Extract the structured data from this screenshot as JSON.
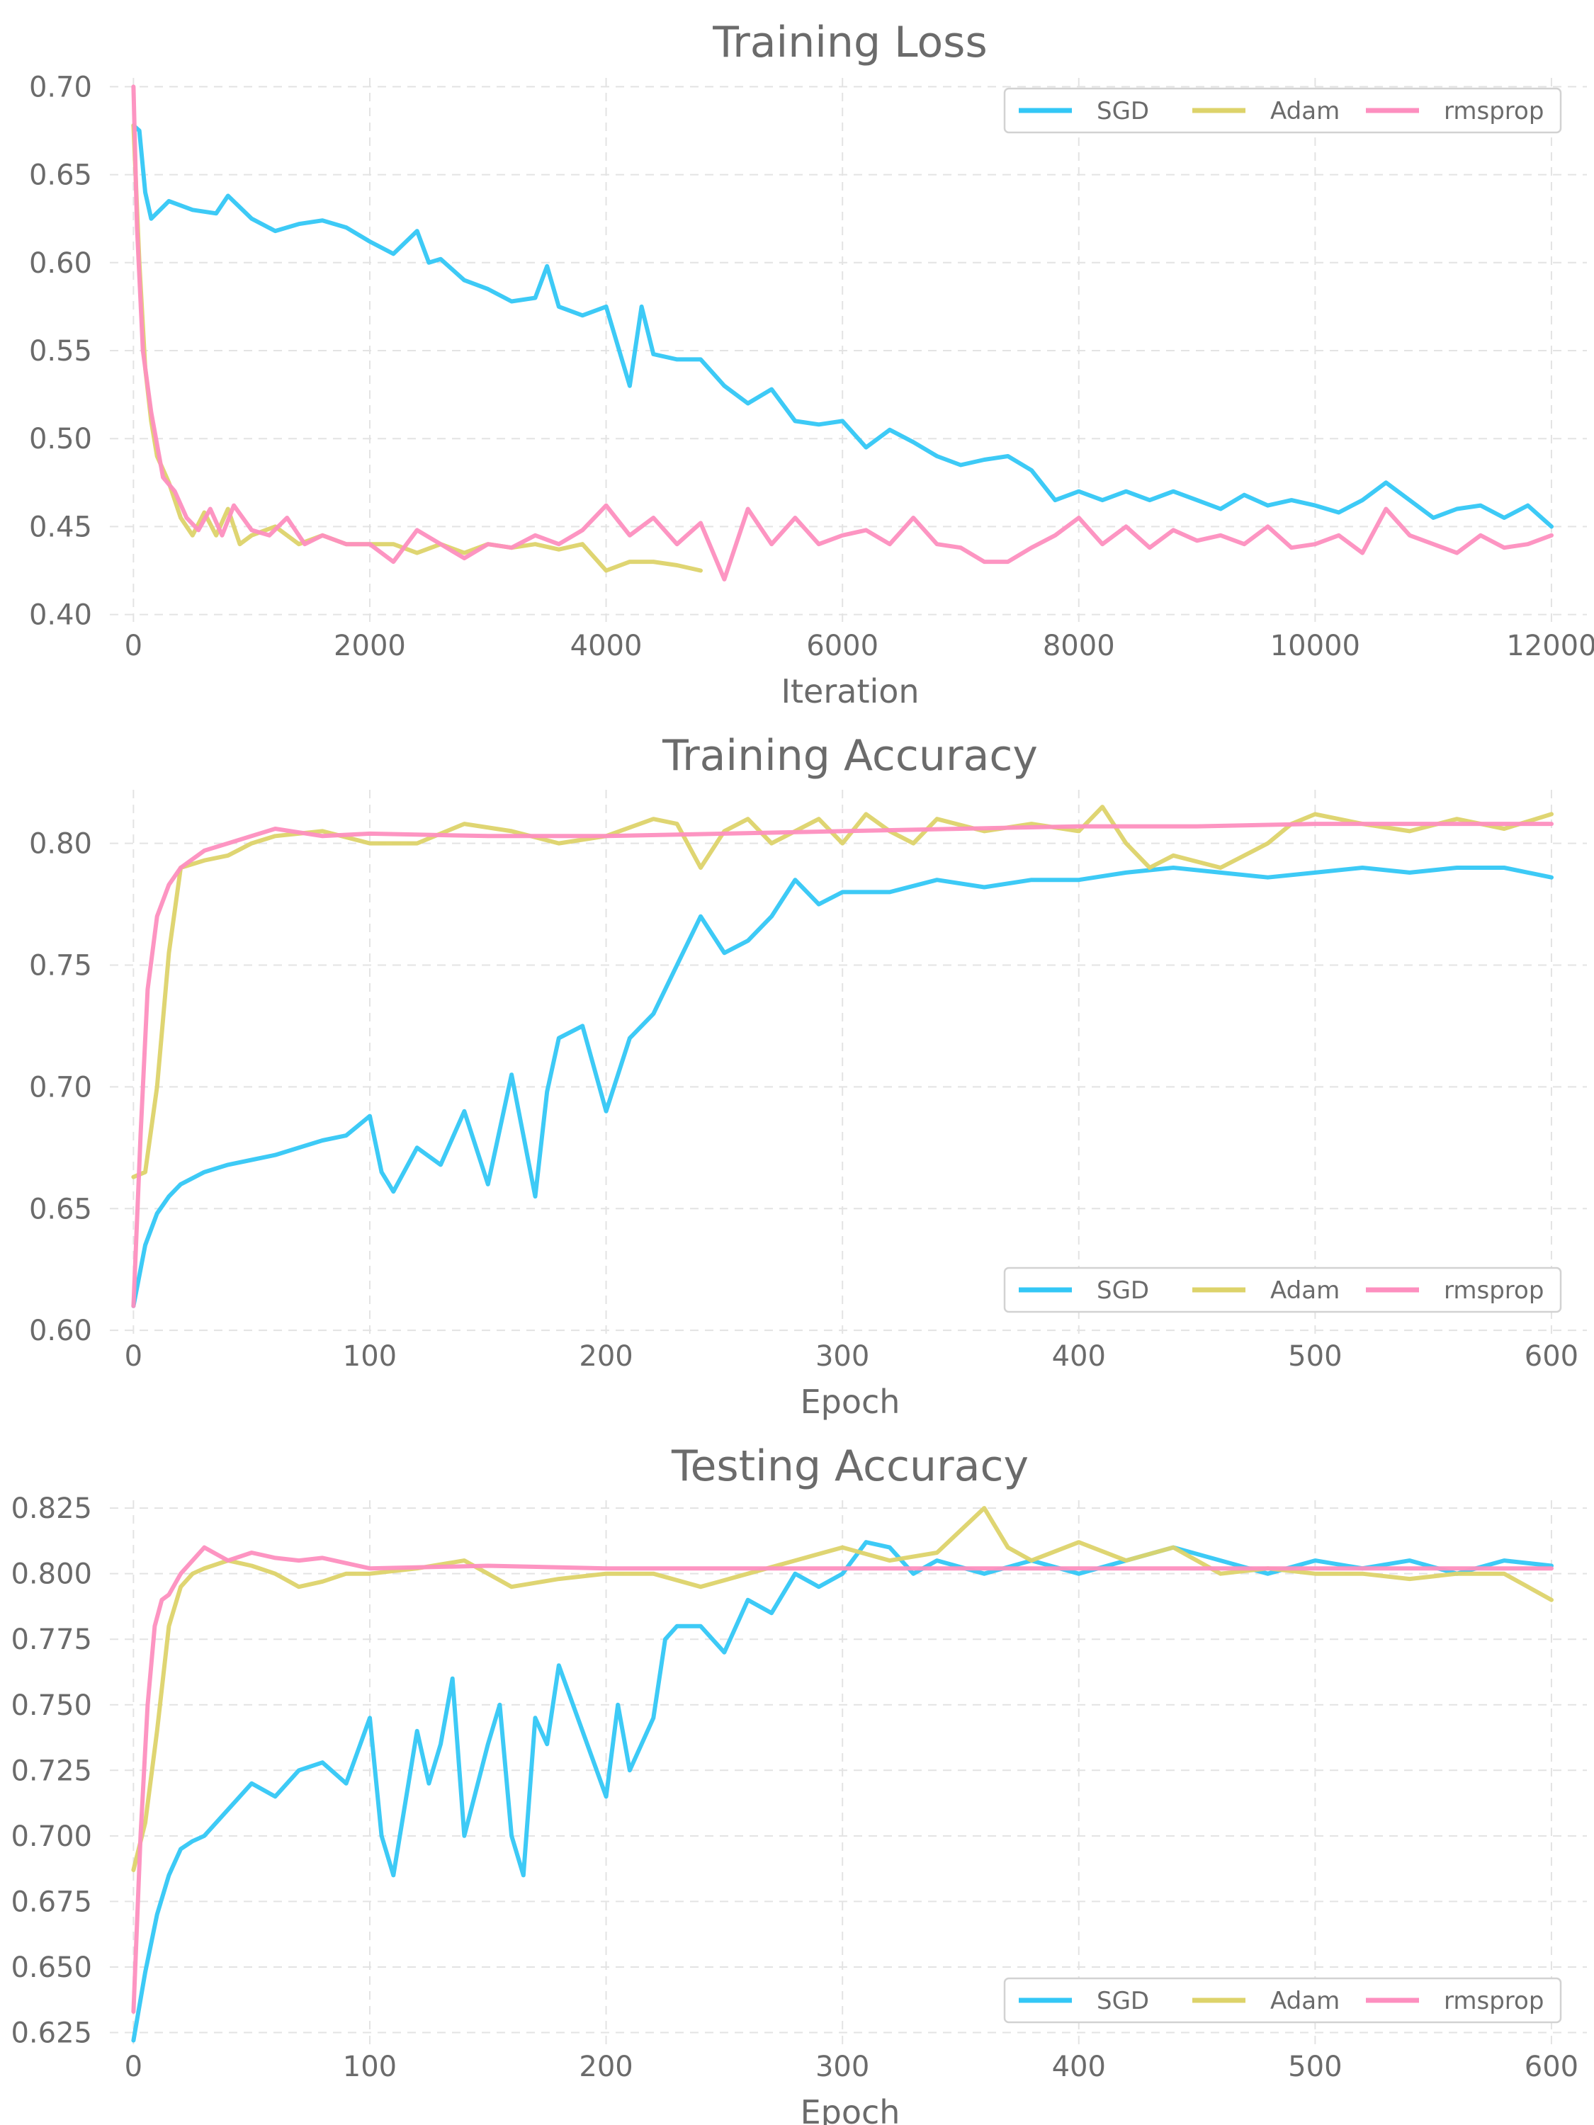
{
  "colors": {
    "SGD": "#33c7f6",
    "Adam": "#ddd36a",
    "rmsprop": "#fd8fbf",
    "text": "#6b6b6b",
    "grid": "#e3e3e3"
  },
  "chart_data": [
    {
      "type": "line",
      "title": "Training Loss",
      "xlabel": "Iteration",
      "ylabel": "",
      "xlim": [
        -200,
        12300
      ],
      "ylim": [
        0.395,
        0.705
      ],
      "xticks": [
        0,
        2000,
        4000,
        6000,
        8000,
        10000,
        12000
      ],
      "xtick_labels": [
        "0",
        "2000",
        "4000",
        "6000",
        "8000",
        "10000",
        "12000"
      ],
      "yticks": [
        0.4,
        0.45,
        0.5,
        0.55,
        0.6,
        0.65,
        0.7
      ],
      "ytick_labels": [
        "0.40",
        "0.45",
        "0.50",
        "0.55",
        "0.60",
        "0.65",
        "0.70"
      ],
      "grid": true,
      "legend": "top-right",
      "series": [
        {
          "name": "SGD",
          "x": [
            0,
            50,
            100,
            150,
            300,
            500,
            700,
            800,
            1000,
            1200,
            1400,
            1600,
            1800,
            2000,
            2200,
            2400,
            2500,
            2600,
            2800,
            3000,
            3200,
            3400,
            3500,
            3600,
            3800,
            4000,
            4200,
            4300,
            4400,
            4600,
            4800,
            5000,
            5200,
            5400,
            5600,
            5800,
            6000,
            6200,
            6400,
            6600,
            6800,
            7000,
            7200,
            7400,
            7600,
            7800,
            8000,
            8200,
            8400,
            8600,
            8800,
            9000,
            9200,
            9400,
            9600,
            9800,
            10000,
            10200,
            10400,
            10600,
            10800,
            11000,
            11200,
            11400,
            11600,
            11800,
            12000
          ],
          "y": [
            0.678,
            0.675,
            0.64,
            0.625,
            0.635,
            0.63,
            0.628,
            0.638,
            0.625,
            0.618,
            0.622,
            0.624,
            0.62,
            0.612,
            0.605,
            0.618,
            0.6,
            0.602,
            0.59,
            0.585,
            0.578,
            0.58,
            0.598,
            0.575,
            0.57,
            0.575,
            0.53,
            0.575,
            0.548,
            0.545,
            0.545,
            0.53,
            0.52,
            0.528,
            0.51,
            0.508,
            0.51,
            0.495,
            0.505,
            0.498,
            0.49,
            0.485,
            0.488,
            0.49,
            0.482,
            0.465,
            0.47,
            0.465,
            0.47,
            0.465,
            0.47,
            0.465,
            0.46,
            0.468,
            0.462,
            0.465,
            0.462,
            0.458,
            0.465,
            0.475,
            0.465,
            0.455,
            0.46,
            0.462,
            0.455,
            0.462,
            0.45
          ]
        },
        {
          "name": "Adam",
          "x": [
            0,
            50,
            100,
            150,
            200,
            300,
            400,
            500,
            600,
            700,
            800,
            900,
            1000,
            1200,
            1400,
            1600,
            1800,
            2000,
            2200,
            2400,
            2600,
            2800,
            3000,
            3200,
            3400,
            3600,
            3800,
            4000,
            4200,
            4400,
            4600,
            4800
          ],
          "y": [
            0.678,
            0.6,
            0.54,
            0.51,
            0.49,
            0.475,
            0.455,
            0.445,
            0.458,
            0.445,
            0.46,
            0.44,
            0.445,
            0.45,
            0.44,
            0.445,
            0.44,
            0.44,
            0.44,
            0.435,
            0.44,
            0.435,
            0.44,
            0.438,
            0.44,
            0.437,
            0.44,
            0.425,
            0.43,
            0.43,
            0.428,
            0.425
          ]
        },
        {
          "name": "rmsprop",
          "x": [
            0,
            30,
            80,
            150,
            250,
            350,
            450,
            550,
            650,
            750,
            850,
            1000,
            1150,
            1300,
            1450,
            1600,
            1800,
            2000,
            2200,
            2400,
            2600,
            2800,
            3000,
            3200,
            3400,
            3600,
            3800,
            4000,
            4200,
            4400,
            4600,
            4800,
            5000,
            5200,
            5400,
            5600,
            5800,
            6000,
            6200,
            6400,
            6600,
            6800,
            7000,
            7200,
            7400,
            7600,
            7800,
            8000,
            8200,
            8400,
            8600,
            8800,
            9000,
            9200,
            9400,
            9600,
            9800,
            10000,
            10200,
            10400,
            10600,
            10800,
            11000,
            11200,
            11400,
            11600,
            11800,
            12000
          ],
          "y": [
            0.7,
            0.62,
            0.55,
            0.515,
            0.478,
            0.47,
            0.455,
            0.448,
            0.46,
            0.445,
            0.462,
            0.448,
            0.445,
            0.455,
            0.44,
            0.445,
            0.44,
            0.44,
            0.43,
            0.448,
            0.44,
            0.432,
            0.44,
            0.438,
            0.445,
            0.44,
            0.448,
            0.462,
            0.445,
            0.455,
            0.44,
            0.452,
            0.42,
            0.46,
            0.44,
            0.455,
            0.44,
            0.445,
            0.448,
            0.44,
            0.455,
            0.44,
            0.438,
            0.43,
            0.43,
            0.438,
            0.445,
            0.455,
            0.44,
            0.45,
            0.438,
            0.448,
            0.442,
            0.445,
            0.44,
            0.45,
            0.438,
            0.44,
            0.445,
            0.435,
            0.46,
            0.445,
            0.44,
            0.435,
            0.445,
            0.438,
            0.44,
            0.445
          ]
        }
      ]
    },
    {
      "type": "line",
      "title": "Training Accuracy",
      "xlabel": "Epoch",
      "ylabel": "",
      "xlim": [
        -10,
        615
      ],
      "ylim": [
        0.598,
        0.822
      ],
      "xticks": [
        0,
        100,
        200,
        300,
        400,
        500,
        600
      ],
      "xtick_labels": [
        "0",
        "100",
        "200",
        "300",
        "400",
        "500",
        "600"
      ],
      "yticks": [
        0.6,
        0.65,
        0.7,
        0.75,
        0.8
      ],
      "ytick_labels": [
        "0.60",
        "0.65",
        "0.70",
        "0.75",
        "0.80"
      ],
      "grid": true,
      "legend": "bottom-right",
      "series": [
        {
          "name": "SGD",
          "x": [
            0,
            5,
            10,
            15,
            20,
            30,
            40,
            50,
            60,
            70,
            80,
            90,
            100,
            105,
            110,
            120,
            130,
            140,
            150,
            160,
            165,
            170,
            175,
            180,
            190,
            200,
            210,
            220,
            230,
            240,
            250,
            260,
            270,
            280,
            290,
            300,
            320,
            340,
            360,
            380,
            400,
            420,
            440,
            460,
            480,
            500,
            520,
            540,
            560,
            580,
            600
          ],
          "y": [
            0.61,
            0.635,
            0.648,
            0.655,
            0.66,
            0.665,
            0.668,
            0.67,
            0.672,
            0.675,
            0.678,
            0.68,
            0.688,
            0.665,
            0.657,
            0.675,
            0.668,
            0.69,
            0.66,
            0.705,
            0.68,
            0.655,
            0.698,
            0.72,
            0.725,
            0.69,
            0.72,
            0.73,
            0.75,
            0.77,
            0.755,
            0.76,
            0.77,
            0.785,
            0.775,
            0.78,
            0.78,
            0.785,
            0.782,
            0.785,
            0.785,
            0.788,
            0.79,
            0.788,
            0.786,
            0.788,
            0.79,
            0.788,
            0.79,
            0.79,
            0.786
          ]
        },
        {
          "name": "Adam",
          "x": [
            0,
            5,
            10,
            15,
            20,
            30,
            40,
            50,
            60,
            80,
            100,
            120,
            140,
            160,
            180,
            200,
            220,
            230,
            240,
            250,
            260,
            270,
            280,
            290,
            300,
            310,
            320,
            330,
            340,
            360,
            380,
            400,
            410,
            420,
            430,
            440,
            460,
            480,
            490,
            500,
            520,
            540,
            560,
            580,
            600
          ],
          "y": [
            0.663,
            0.665,
            0.7,
            0.755,
            0.79,
            0.793,
            0.795,
            0.8,
            0.803,
            0.805,
            0.8,
            0.8,
            0.808,
            0.805,
            0.8,
            0.803,
            0.81,
            0.808,
            0.79,
            0.805,
            0.81,
            0.8,
            0.805,
            0.81,
            0.8,
            0.812,
            0.805,
            0.8,
            0.81,
            0.805,
            0.808,
            0.805,
            0.815,
            0.8,
            0.79,
            0.795,
            0.79,
            0.8,
            0.808,
            0.812,
            0.808,
            0.805,
            0.81,
            0.806,
            0.812
          ]
        },
        {
          "name": "rmsprop",
          "x": [
            0,
            3,
            6,
            10,
            15,
            20,
            30,
            40,
            50,
            60,
            80,
            100,
            150,
            200,
            250,
            300,
            350,
            400,
            450,
            500,
            550,
            600
          ],
          "y": [
            0.61,
            0.68,
            0.74,
            0.77,
            0.783,
            0.79,
            0.797,
            0.8,
            0.803,
            0.806,
            0.803,
            0.804,
            0.803,
            0.803,
            0.804,
            0.805,
            0.806,
            0.807,
            0.807,
            0.808,
            0.808,
            0.808
          ]
        }
      ]
    },
    {
      "type": "line",
      "title": "Testing Accuracy",
      "xlabel": "Epoch",
      "ylabel": "",
      "xlim": [
        -10,
        615
      ],
      "ylim": [
        0.62,
        0.828
      ],
      "xticks": [
        0,
        100,
        200,
        300,
        400,
        500,
        600
      ],
      "xtick_labels": [
        "0",
        "100",
        "200",
        "300",
        "400",
        "500",
        "600"
      ],
      "yticks": [
        0.625,
        0.65,
        0.675,
        0.7,
        0.725,
        0.75,
        0.775,
        0.8,
        0.825
      ],
      "ytick_labels": [
        "0.625",
        "0.650",
        "0.675",
        "0.700",
        "0.725",
        "0.750",
        "0.775",
        "0.800",
        "0.825"
      ],
      "grid": true,
      "legend": "bottom-right",
      "series": [
        {
          "name": "SGD",
          "x": [
            0,
            5,
            10,
            15,
            20,
            25,
            30,
            40,
            50,
            60,
            70,
            80,
            90,
            100,
            105,
            110,
            120,
            125,
            130,
            135,
            140,
            150,
            155,
            160,
            165,
            170,
            175,
            180,
            190,
            200,
            205,
            210,
            215,
            220,
            225,
            230,
            240,
            250,
            260,
            270,
            280,
            290,
            300,
            310,
            320,
            330,
            340,
            360,
            380,
            400,
            420,
            440,
            460,
            480,
            500,
            520,
            540,
            560,
            580,
            600
          ],
          "y": [
            0.622,
            0.648,
            0.67,
            0.685,
            0.695,
            0.698,
            0.7,
            0.71,
            0.72,
            0.715,
            0.725,
            0.728,
            0.72,
            0.745,
            0.7,
            0.685,
            0.74,
            0.72,
            0.735,
            0.76,
            0.7,
            0.735,
            0.75,
            0.7,
            0.685,
            0.745,
            0.735,
            0.765,
            0.74,
            0.715,
            0.75,
            0.725,
            0.735,
            0.745,
            0.775,
            0.78,
            0.78,
            0.77,
            0.79,
            0.785,
            0.8,
            0.795,
            0.8,
            0.812,
            0.81,
            0.8,
            0.805,
            0.8,
            0.805,
            0.8,
            0.805,
            0.81,
            0.805,
            0.8,
            0.805,
            0.802,
            0.805,
            0.8,
            0.805,
            0.803
          ]
        },
        {
          "name": "Adam",
          "x": [
            0,
            5,
            10,
            15,
            20,
            25,
            30,
            40,
            50,
            60,
            70,
            80,
            90,
            100,
            120,
            140,
            160,
            180,
            200,
            220,
            240,
            260,
            280,
            300,
            320,
            340,
            360,
            370,
            380,
            400,
            420,
            440,
            460,
            480,
            500,
            520,
            540,
            560,
            580,
            600
          ],
          "y": [
            0.687,
            0.705,
            0.74,
            0.78,
            0.795,
            0.8,
            0.802,
            0.805,
            0.803,
            0.8,
            0.795,
            0.797,
            0.8,
            0.8,
            0.802,
            0.805,
            0.795,
            0.798,
            0.8,
            0.8,
            0.795,
            0.8,
            0.805,
            0.81,
            0.805,
            0.808,
            0.825,
            0.81,
            0.805,
            0.812,
            0.805,
            0.81,
            0.8,
            0.802,
            0.8,
            0.8,
            0.798,
            0.8,
            0.8,
            0.79
          ]
        },
        {
          "name": "rmsprop",
          "x": [
            0,
            3,
            6,
            9,
            12,
            15,
            20,
            30,
            40,
            50,
            60,
            70,
            80,
            100,
            150,
            200,
            300,
            400,
            500,
            600
          ],
          "y": [
            0.633,
            0.7,
            0.75,
            0.78,
            0.79,
            0.792,
            0.8,
            0.81,
            0.805,
            0.808,
            0.806,
            0.805,
            0.806,
            0.802,
            0.803,
            0.802,
            0.802,
            0.802,
            0.802,
            0.802
          ]
        }
      ]
    }
  ]
}
